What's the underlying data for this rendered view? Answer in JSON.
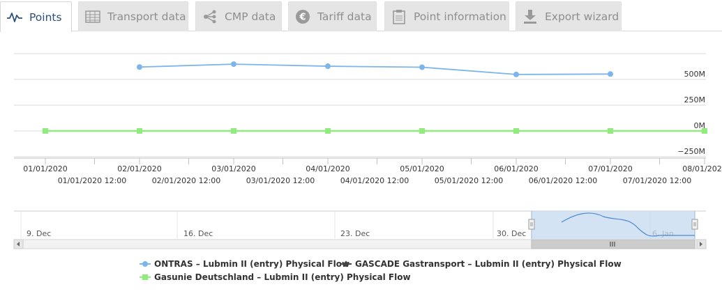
{
  "tabs": [
    {
      "label": "Points",
      "icon": "line-chart-icon",
      "active": true
    },
    {
      "label": "Transport data",
      "icon": "table-icon",
      "active": false
    },
    {
      "label": "CMP data",
      "icon": "share-nodes-icon",
      "active": false
    },
    {
      "label": "Tariff data",
      "icon": "euro-icon",
      "active": false
    },
    {
      "label": "Point information",
      "icon": "clipboard-icon",
      "active": false
    },
    {
      "label": "Export wizard",
      "icon": "download-icon",
      "active": false
    }
  ],
  "colors": {
    "ontras": "#7cb5ec",
    "gascade": "#434348",
    "gasunie": "#90ed7d",
    "tab_active_text": "#2b4f7e",
    "tab_inactive_bg": "#e5e5e5",
    "navigator_fill": "#c6daf0"
  },
  "chart_data": {
    "type": "line",
    "title": "",
    "xlabel": "",
    "ylabel": "",
    "ylim": [
      -250,
      750
    ],
    "y_unit": "M",
    "y_ticks": [
      {
        "value": 500,
        "label": "500M"
      },
      {
        "value": 250,
        "label": "250M"
      },
      {
        "value": 0,
        "label": "0M"
      },
      {
        "value": -250,
        "label": "−250M"
      }
    ],
    "x_ticks": [
      {
        "day": 1,
        "label": "01/01/2020"
      },
      {
        "day": 1.5,
        "label": "01/01/2020 12:00"
      },
      {
        "day": 2,
        "label": "02/01/2020"
      },
      {
        "day": 2.5,
        "label": "02/01/2020 12:00"
      },
      {
        "day": 3,
        "label": "03/01/2020"
      },
      {
        "day": 3.5,
        "label": "03/01/2020 12:00"
      },
      {
        "day": 4,
        "label": "04/01/2020"
      },
      {
        "day": 4.5,
        "label": "04/01/2020 12:00"
      },
      {
        "day": 5,
        "label": "05/01/2020"
      },
      {
        "day": 5.5,
        "label": "05/01/2020 12:00"
      },
      {
        "day": 6,
        "label": "06/01/2020"
      },
      {
        "day": 6.5,
        "label": "06/01/2020 12:00"
      },
      {
        "day": 7,
        "label": "07/01/2020"
      },
      {
        "day": 7.5,
        "label": "07/01/2020 12:00"
      },
      {
        "day": 8,
        "label": "08/01/2020"
      }
    ],
    "grid": true,
    "legend_position": "bottom",
    "series": [
      {
        "name": "ONTRAS – Lubmin II (entry) Physical Flow",
        "color": "#7cb5ec",
        "marker": "circle",
        "x": [
          "02/01/2020",
          "03/01/2020",
          "04/01/2020",
          "05/01/2020",
          "06/01/2020",
          "07/01/2020"
        ],
        "values": [
          620,
          648,
          628,
          618,
          548,
          552
        ]
      },
      {
        "name": "GASCADE Gastransport – Lubmin II (entry) Physical Flow",
        "color": "#434348",
        "marker": "diamond",
        "x": [],
        "values": []
      },
      {
        "name": "Gasunie Deutschland – Lubmin II (entry) Physical Flow",
        "color": "#90ed7d",
        "marker": "square",
        "x": [
          "01/01/2020",
          "02/01/2020",
          "03/01/2020",
          "04/01/2020",
          "05/01/2020",
          "06/01/2020",
          "07/01/2020",
          "08/01/2020"
        ],
        "values": [
          0,
          0,
          0,
          0,
          0,
          0,
          0,
          0
        ]
      }
    ],
    "navigator": {
      "labels": [
        "9. Dec",
        "16. Dec",
        "23. Dec",
        "30. Dec",
        "6. Jan"
      ],
      "selected_range": [
        "01/01/2020",
        "08/01/2020"
      ]
    }
  }
}
